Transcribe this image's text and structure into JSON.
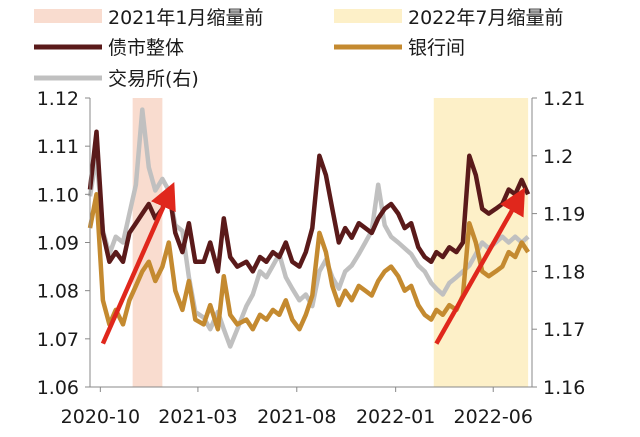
{
  "chart_data": {
    "type": "line",
    "legend_position": "top",
    "grid": false,
    "shaded_periods": [
      {
        "name": "2021年1月缩量前",
        "start": "2020-11-20",
        "end": "2021-01-05",
        "color": "#f9dccf"
      },
      {
        "name": "2022年7月缩量前",
        "start": "2022-03-01",
        "end": "2022-07-25",
        "color": "#fdf0c8"
      }
    ],
    "x_axis": {
      "range": [
        "2020-09-15",
        "2022-07-31"
      ],
      "ticks": [
        "2020-10",
        "2021-03",
        "2021-08",
        "2022-01",
        "2022-06"
      ],
      "tick_dates": [
        "2020-10-01",
        "2021-03-01",
        "2021-08-01",
        "2022-01-01",
        "2022-06-01"
      ]
    },
    "y_left": {
      "range": [
        1.06,
        1.12
      ],
      "ticks": [
        "1.06",
        "1.07",
        "1.08",
        "1.09",
        "1.10",
        "1.11",
        "1.12"
      ]
    },
    "y_right": {
      "range": [
        1.16,
        1.21
      ],
      "ticks": [
        "1.16",
        "1.17",
        "1.18",
        "1.19",
        "1.2",
        "1.21"
      ]
    },
    "series": [
      {
        "name": "债市整体",
        "axis": "left",
        "color": "#5a1a1a",
        "width": 4.5,
        "points": [
          [
            "2020-09-15",
            1.101
          ],
          [
            "2020-09-25",
            1.113
          ],
          [
            "2020-10-05",
            1.092
          ],
          [
            "2020-10-15",
            1.086
          ],
          [
            "2020-10-25",
            1.088
          ],
          [
            "2020-11-05",
            1.086
          ],
          [
            "2020-11-15",
            1.092
          ],
          [
            "2020-11-25",
            1.094
          ],
          [
            "2020-12-05",
            1.096
          ],
          [
            "2020-12-15",
            1.098
          ],
          [
            "2020-12-25",
            1.095
          ],
          [
            "2021-01-05",
            1.097
          ],
          [
            "2021-01-15",
            1.101
          ],
          [
            "2021-01-25",
            1.092
          ],
          [
            "2021-02-05",
            1.088
          ],
          [
            "2021-02-15",
            1.094
          ],
          [
            "2021-02-25",
            1.086
          ],
          [
            "2021-03-10",
            1.086
          ],
          [
            "2021-03-20",
            1.09
          ],
          [
            "2021-04-01",
            1.084
          ],
          [
            "2021-04-10",
            1.095
          ],
          [
            "2021-04-20",
            1.087
          ],
          [
            "2021-05-01",
            1.085
          ],
          [
            "2021-05-15",
            1.086
          ],
          [
            "2021-05-25",
            1.084
          ],
          [
            "2021-06-05",
            1.087
          ],
          [
            "2021-06-15",
            1.086
          ],
          [
            "2021-06-25",
            1.088
          ],
          [
            "2021-07-05",
            1.087
          ],
          [
            "2021-07-15",
            1.09
          ],
          [
            "2021-07-25",
            1.086
          ],
          [
            "2021-08-05",
            1.085
          ],
          [
            "2021-08-15",
            1.088
          ],
          [
            "2021-08-25",
            1.093
          ],
          [
            "2021-09-05",
            1.108
          ],
          [
            "2021-09-15",
            1.104
          ],
          [
            "2021-09-25",
            1.097
          ],
          [
            "2021-10-05",
            1.09
          ],
          [
            "2021-10-15",
            1.093
          ],
          [
            "2021-10-25",
            1.091
          ],
          [
            "2021-11-05",
            1.094
          ],
          [
            "2021-11-15",
            1.093
          ],
          [
            "2021-11-25",
            1.092
          ],
          [
            "2021-12-05",
            1.095
          ],
          [
            "2021-12-15",
            1.097
          ],
          [
            "2021-12-25",
            1.098
          ],
          [
            "2022-01-05",
            1.096
          ],
          [
            "2022-01-15",
            1.093
          ],
          [
            "2022-01-25",
            1.094
          ],
          [
            "2022-02-05",
            1.089
          ],
          [
            "2022-02-15",
            1.087
          ],
          [
            "2022-02-25",
            1.086
          ],
          [
            "2022-03-05",
            1.088
          ],
          [
            "2022-03-15",
            1.087
          ],
          [
            "2022-03-25",
            1.089
          ],
          [
            "2022-04-05",
            1.088
          ],
          [
            "2022-04-15",
            1.09
          ],
          [
            "2022-04-25",
            1.108
          ],
          [
            "2022-05-05",
            1.104
          ],
          [
            "2022-05-15",
            1.097
          ],
          [
            "2022-05-25",
            1.096
          ],
          [
            "2022-06-05",
            1.097
          ],
          [
            "2022-06-15",
            1.098
          ],
          [
            "2022-06-25",
            1.101
          ],
          [
            "2022-07-05",
            1.1
          ],
          [
            "2022-07-15",
            1.103
          ],
          [
            "2022-07-25",
            1.1
          ]
        ]
      },
      {
        "name": "银行间",
        "axis": "left",
        "color": "#c48a30",
        "width": 4.5,
        "points": [
          [
            "2020-09-15",
            1.093
          ],
          [
            "2020-09-25",
            1.1
          ],
          [
            "2020-10-05",
            1.078
          ],
          [
            "2020-10-15",
            1.073
          ],
          [
            "2020-10-25",
            1.076
          ],
          [
            "2020-11-05",
            1.073
          ],
          [
            "2020-11-15",
            1.078
          ],
          [
            "2020-11-25",
            1.081
          ],
          [
            "2020-12-05",
            1.084
          ],
          [
            "2020-12-15",
            1.086
          ],
          [
            "2020-12-25",
            1.082
          ],
          [
            "2021-01-05",
            1.085
          ],
          [
            "2021-01-15",
            1.09
          ],
          [
            "2021-01-25",
            1.08
          ],
          [
            "2021-02-05",
            1.076
          ],
          [
            "2021-02-15",
            1.082
          ],
          [
            "2021-02-25",
            1.074
          ],
          [
            "2021-03-10",
            1.073
          ],
          [
            "2021-03-20",
            1.077
          ],
          [
            "2021-04-01",
            1.072
          ],
          [
            "2021-04-10",
            1.083
          ],
          [
            "2021-04-20",
            1.075
          ],
          [
            "2021-05-01",
            1.073
          ],
          [
            "2021-05-15",
            1.074
          ],
          [
            "2021-05-25",
            1.072
          ],
          [
            "2021-06-05",
            1.075
          ],
          [
            "2021-06-15",
            1.074
          ],
          [
            "2021-06-25",
            1.076
          ],
          [
            "2021-07-05",
            1.075
          ],
          [
            "2021-07-15",
            1.078
          ],
          [
            "2021-07-25",
            1.074
          ],
          [
            "2021-08-05",
            1.072
          ],
          [
            "2021-08-15",
            1.075
          ],
          [
            "2021-08-25",
            1.079
          ],
          [
            "2021-09-05",
            1.092
          ],
          [
            "2021-09-15",
            1.088
          ],
          [
            "2021-09-25",
            1.081
          ],
          [
            "2021-10-05",
            1.077
          ],
          [
            "2021-10-15",
            1.08
          ],
          [
            "2021-10-25",
            1.078
          ],
          [
            "2021-11-05",
            1.081
          ],
          [
            "2021-11-15",
            1.08
          ],
          [
            "2021-11-25",
            1.079
          ],
          [
            "2021-12-05",
            1.082
          ],
          [
            "2021-12-15",
            1.084
          ],
          [
            "2021-12-25",
            1.085
          ],
          [
            "2022-01-05",
            1.083
          ],
          [
            "2022-01-15",
            1.08
          ],
          [
            "2022-01-25",
            1.081
          ],
          [
            "2022-02-05",
            1.077
          ],
          [
            "2022-02-15",
            1.075
          ],
          [
            "2022-02-25",
            1.074
          ],
          [
            "2022-03-05",
            1.076
          ],
          [
            "2022-03-15",
            1.075
          ],
          [
            "2022-03-25",
            1.077
          ],
          [
            "2022-04-05",
            1.076
          ],
          [
            "2022-04-15",
            1.079
          ],
          [
            "2022-04-25",
            1.094
          ],
          [
            "2022-05-05",
            1.09
          ],
          [
            "2022-05-15",
            1.084
          ],
          [
            "2022-05-25",
            1.083
          ],
          [
            "2022-06-05",
            1.084
          ],
          [
            "2022-06-15",
            1.085
          ],
          [
            "2022-06-25",
            1.088
          ],
          [
            "2022-07-05",
            1.087
          ],
          [
            "2022-07-15",
            1.09
          ],
          [
            "2022-07-25",
            1.088
          ]
        ]
      },
      {
        "name": "交易所(右)",
        "axis": "right",
        "color": "#c0c0c0",
        "width": 4.5,
        "points": [
          [
            "2020-09-15",
            1.193
          ],
          [
            "2020-09-25",
            1.2
          ],
          [
            "2020-10-05",
            1.187
          ],
          [
            "2020-10-15",
            1.183
          ],
          [
            "2020-10-25",
            1.186
          ],
          [
            "2020-11-05",
            1.185
          ],
          [
            "2020-11-15",
            1.19
          ],
          [
            "2020-11-25",
            1.195
          ],
          [
            "2020-12-05",
            1.208
          ],
          [
            "2020-12-15",
            1.198
          ],
          [
            "2020-12-25",
            1.194
          ],
          [
            "2021-01-05",
            1.196
          ],
          [
            "2021-01-15",
            1.194
          ],
          [
            "2021-01-25",
            1.188
          ],
          [
            "2021-02-05",
            1.187
          ],
          [
            "2021-02-15",
            1.179
          ],
          [
            "2021-02-25",
            1.173
          ],
          [
            "2021-03-10",
            1.172
          ],
          [
            "2021-03-20",
            1.17
          ],
          [
            "2021-04-01",
            1.173
          ],
          [
            "2021-04-10",
            1.17
          ],
          [
            "2021-04-20",
            1.167
          ],
          [
            "2021-05-01",
            1.17
          ],
          [
            "2021-05-15",
            1.174
          ],
          [
            "2021-05-25",
            1.176
          ],
          [
            "2021-06-05",
            1.18
          ],
          [
            "2021-06-15",
            1.179
          ],
          [
            "2021-06-25",
            1.181
          ],
          [
            "2021-07-05",
            1.183
          ],
          [
            "2021-07-15",
            1.179
          ],
          [
            "2021-07-25",
            1.177
          ],
          [
            "2021-08-05",
            1.175
          ],
          [
            "2021-08-15",
            1.176
          ],
          [
            "2021-08-25",
            1.174
          ],
          [
            "2021-09-05",
            1.18
          ],
          [
            "2021-09-15",
            1.182
          ],
          [
            "2021-09-25",
            1.179
          ],
          [
            "2021-10-05",
            1.177
          ],
          [
            "2021-10-15",
            1.18
          ],
          [
            "2021-10-25",
            1.181
          ],
          [
            "2021-11-05",
            1.183
          ],
          [
            "2021-11-15",
            1.185
          ],
          [
            "2021-11-25",
            1.187
          ],
          [
            "2021-12-05",
            1.195
          ],
          [
            "2021-12-15",
            1.188
          ],
          [
            "2021-12-25",
            1.186
          ],
          [
            "2022-01-05",
            1.185
          ],
          [
            "2022-01-15",
            1.184
          ],
          [
            "2022-01-25",
            1.183
          ],
          [
            "2022-02-05",
            1.181
          ],
          [
            "2022-02-15",
            1.18
          ],
          [
            "2022-02-25",
            1.178
          ],
          [
            "2022-03-05",
            1.177
          ],
          [
            "2022-03-15",
            1.176
          ],
          [
            "2022-03-25",
            1.178
          ],
          [
            "2022-04-05",
            1.179
          ],
          [
            "2022-04-15",
            1.18
          ],
          [
            "2022-04-25",
            1.181
          ],
          [
            "2022-05-05",
            1.183
          ],
          [
            "2022-05-15",
            1.185
          ],
          [
            "2022-05-25",
            1.184
          ],
          [
            "2022-06-05",
            1.185
          ],
          [
            "2022-06-15",
            1.186
          ],
          [
            "2022-06-25",
            1.185
          ],
          [
            "2022-07-05",
            1.186
          ],
          [
            "2022-07-15",
            1.185
          ],
          [
            "2022-07-25",
            1.186
          ]
        ]
      }
    ],
    "annotations": [
      {
        "type": "arrow",
        "color": "#e0271c",
        "from": [
          "2020-10-05",
          1.069
        ],
        "to": [
          "2021-01-15",
          1.1
        ]
      },
      {
        "type": "arrow",
        "color": "#e0271c",
        "from": [
          "2022-03-05",
          1.069
        ],
        "to": [
          "2022-07-10",
          1.099
        ]
      }
    ]
  }
}
